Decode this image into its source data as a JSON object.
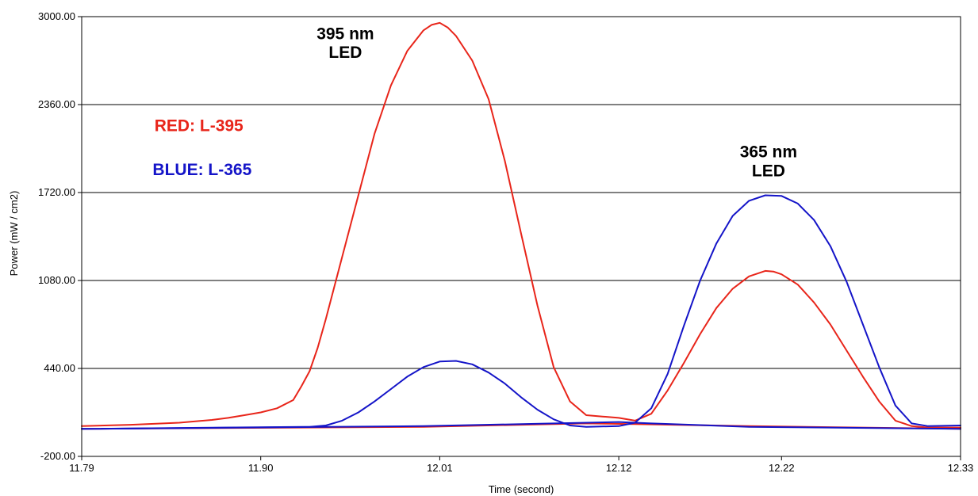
{
  "chart_data": {
    "type": "line",
    "xlabel": "Time (second)",
    "ylabel": "Power (mW / cm2)",
    "xlim": [
      11.79,
      12.33
    ],
    "ylim": [
      -200,
      3000
    ],
    "x_ticks": [
      {
        "value": 11.79,
        "label": "11.79"
      },
      {
        "value": 11.9,
        "label": "11.90"
      },
      {
        "value": 12.01,
        "label": "12.01"
      },
      {
        "value": 12.12,
        "label": "12.12"
      },
      {
        "value": 12.22,
        "label": "12.22"
      },
      {
        "value": 12.33,
        "label": "12.33"
      }
    ],
    "y_ticks": [
      {
        "value": -200,
        "label": "-200.00"
      },
      {
        "value": 440,
        "label": "440.00"
      },
      {
        "value": 1080,
        "label": "1080.00"
      },
      {
        "value": 1720,
        "label": "1720.00"
      },
      {
        "value": 2360,
        "label": "2360.00"
      },
      {
        "value": 3000,
        "label": "3000.00"
      }
    ],
    "grid": {
      "horizontal": true,
      "vertical": false
    },
    "series": [
      {
        "color": "#e8251a",
        "points": [
          [
            11.79,
            20
          ],
          [
            11.82,
            30
          ],
          [
            11.85,
            45
          ],
          [
            11.87,
            65
          ],
          [
            11.88,
            80
          ],
          [
            11.89,
            100
          ],
          [
            11.9,
            120
          ],
          [
            11.91,
            150
          ],
          [
            11.92,
            210
          ],
          [
            11.925,
            310
          ],
          [
            11.93,
            420
          ],
          [
            11.935,
            590
          ],
          [
            11.94,
            800
          ],
          [
            11.95,
            1250
          ],
          [
            11.96,
            1700
          ],
          [
            11.97,
            2150
          ],
          [
            11.98,
            2500
          ],
          [
            11.99,
            2750
          ],
          [
            12.0,
            2900
          ],
          [
            12.005,
            2940
          ],
          [
            12.01,
            2955
          ],
          [
            12.015,
            2920
          ],
          [
            12.02,
            2860
          ],
          [
            12.03,
            2680
          ],
          [
            12.04,
            2400
          ],
          [
            12.05,
            1950
          ],
          [
            12.06,
            1420
          ],
          [
            12.07,
            900
          ],
          [
            12.08,
            450
          ],
          [
            12.09,
            200
          ],
          [
            12.1,
            100
          ],
          [
            12.11,
            90
          ],
          [
            12.12,
            80
          ],
          [
            12.13,
            60
          ],
          [
            12.14,
            110
          ],
          [
            12.15,
            280
          ],
          [
            12.16,
            480
          ],
          [
            12.17,
            690
          ],
          [
            12.18,
            880
          ],
          [
            12.19,
            1020
          ],
          [
            12.2,
            1110
          ],
          [
            12.21,
            1150
          ],
          [
            12.215,
            1145
          ],
          [
            12.22,
            1125
          ],
          [
            12.23,
            1050
          ],
          [
            12.24,
            920
          ],
          [
            12.25,
            760
          ],
          [
            12.26,
            570
          ],
          [
            12.27,
            380
          ],
          [
            12.28,
            200
          ],
          [
            12.29,
            60
          ],
          [
            12.3,
            20
          ],
          [
            12.31,
            10
          ],
          [
            12.33,
            10
          ]
        ]
      },
      {
        "color": "#e8251a",
        "points": [
          [
            11.79,
            0
          ],
          [
            12.0,
            15
          ],
          [
            12.1,
            40
          ],
          [
            12.13,
            35
          ],
          [
            12.2,
            20
          ],
          [
            12.33,
            0
          ]
        ]
      },
      {
        "color": "#1414c8",
        "points": [
          [
            11.79,
            0
          ],
          [
            11.93,
            15
          ],
          [
            11.94,
            25
          ],
          [
            11.95,
            60
          ],
          [
            11.96,
            120
          ],
          [
            11.97,
            200
          ],
          [
            11.98,
            290
          ],
          [
            11.99,
            380
          ],
          [
            12.0,
            450
          ],
          [
            12.01,
            490
          ],
          [
            12.02,
            495
          ],
          [
            12.03,
            470
          ],
          [
            12.04,
            410
          ],
          [
            12.05,
            330
          ],
          [
            12.06,
            230
          ],
          [
            12.07,
            140
          ],
          [
            12.08,
            70
          ],
          [
            12.09,
            25
          ],
          [
            12.1,
            15
          ],
          [
            12.12,
            20
          ],
          [
            12.13,
            45
          ],
          [
            12.14,
            150
          ],
          [
            12.15,
            400
          ],
          [
            12.16,
            750
          ],
          [
            12.17,
            1080
          ],
          [
            12.18,
            1350
          ],
          [
            12.19,
            1550
          ],
          [
            12.2,
            1660
          ],
          [
            12.21,
            1700
          ],
          [
            12.22,
            1695
          ],
          [
            12.23,
            1640
          ],
          [
            12.24,
            1520
          ],
          [
            12.25,
            1330
          ],
          [
            12.26,
            1070
          ],
          [
            12.27,
            760
          ],
          [
            12.28,
            450
          ],
          [
            12.29,
            170
          ],
          [
            12.3,
            40
          ],
          [
            12.31,
            20
          ],
          [
            12.33,
            25
          ]
        ]
      },
      {
        "color": "#1414c8",
        "points": [
          [
            11.79,
            0
          ],
          [
            12.0,
            20
          ],
          [
            12.08,
            40
          ],
          [
            12.12,
            50
          ],
          [
            12.14,
            40
          ],
          [
            12.2,
            15
          ],
          [
            12.33,
            0
          ]
        ]
      }
    ],
    "annotations": [
      {
        "text": "395 nm",
        "x": 11.952,
        "y": 2837,
        "color": "#000000"
      },
      {
        "text": "LED",
        "x": 11.952,
        "y": 2700,
        "color": "#000000"
      },
      {
        "text": "365 nm",
        "x": 12.212,
        "y": 1978,
        "color": "#000000"
      },
      {
        "text": "LED",
        "x": 12.212,
        "y": 1838,
        "color": "#000000"
      },
      {
        "text": "RED: L-395",
        "x": 11.862,
        "y": 2168,
        "color": "#e8251a"
      },
      {
        "text": "BLUE: L-365",
        "x": 11.864,
        "y": 1848,
        "color": "#1414c8"
      }
    ]
  }
}
